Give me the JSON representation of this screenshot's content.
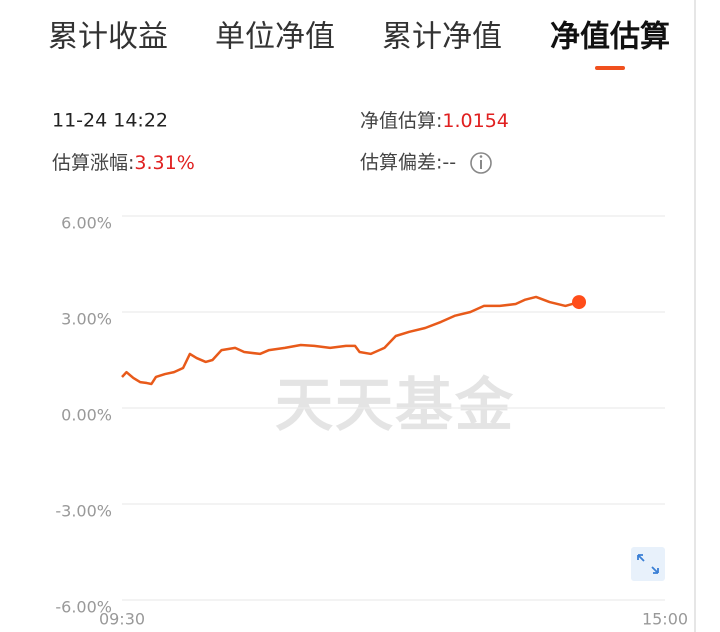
{
  "tabs": {
    "labels": [
      "累计收益",
      "单位净值",
      "累计净值",
      "净值估算"
    ],
    "active": 3
  },
  "info": {
    "time": "11-24 14:22",
    "nav_label": "净值估算:",
    "nav_value": "1.0154",
    "change_label": "估算涨幅:",
    "change_value": "3.31%",
    "deviation_label": "估算偏差:--"
  },
  "chart_data": {
    "type": "line",
    "watermark": "天天基金",
    "color": "#e85a1a",
    "x": [
      0,
      2,
      5,
      8,
      11,
      13,
      15,
      19,
      23,
      27,
      30,
      33,
      37,
      40,
      44,
      50,
      54,
      61,
      65,
      72,
      79,
      85,
      92,
      99,
      103,
      105,
      110,
      116,
      121,
      127,
      134,
      141,
      147,
      154,
      160,
      167,
      174,
      178,
      183,
      189,
      196,
      202
    ],
    "values": [
      0.97,
      1.12,
      0.94,
      0.81,
      0.78,
      0.75,
      0.97,
      1.06,
      1.12,
      1.25,
      1.69,
      1.56,
      1.44,
      1.5,
      1.81,
      1.88,
      1.75,
      1.69,
      1.81,
      1.88,
      1.97,
      1.94,
      1.88,
      1.94,
      1.94,
      1.75,
      1.69,
      1.88,
      2.25,
      2.38,
      2.5,
      2.69,
      2.88,
      3.0,
      3.19,
      3.19,
      3.25,
      3.38,
      3.47,
      3.31,
      3.19,
      3.31
    ],
    "xlim": [
      0,
      240
    ],
    "xticks": [
      {
        "value": 0,
        "label": "09:30"
      },
      {
        "value": 240,
        "label": "15:00"
      }
    ],
    "ylim": [
      -6,
      6
    ],
    "yticks": [
      {
        "value": 6,
        "label": "6.00%"
      },
      {
        "value": 3,
        "label": "3.00%"
      },
      {
        "value": 0,
        "label": "0.00%"
      },
      {
        "value": -3,
        "label": "-3.00%"
      },
      {
        "value": -6,
        "label": "-6.00%"
      }
    ],
    "grid": true
  }
}
